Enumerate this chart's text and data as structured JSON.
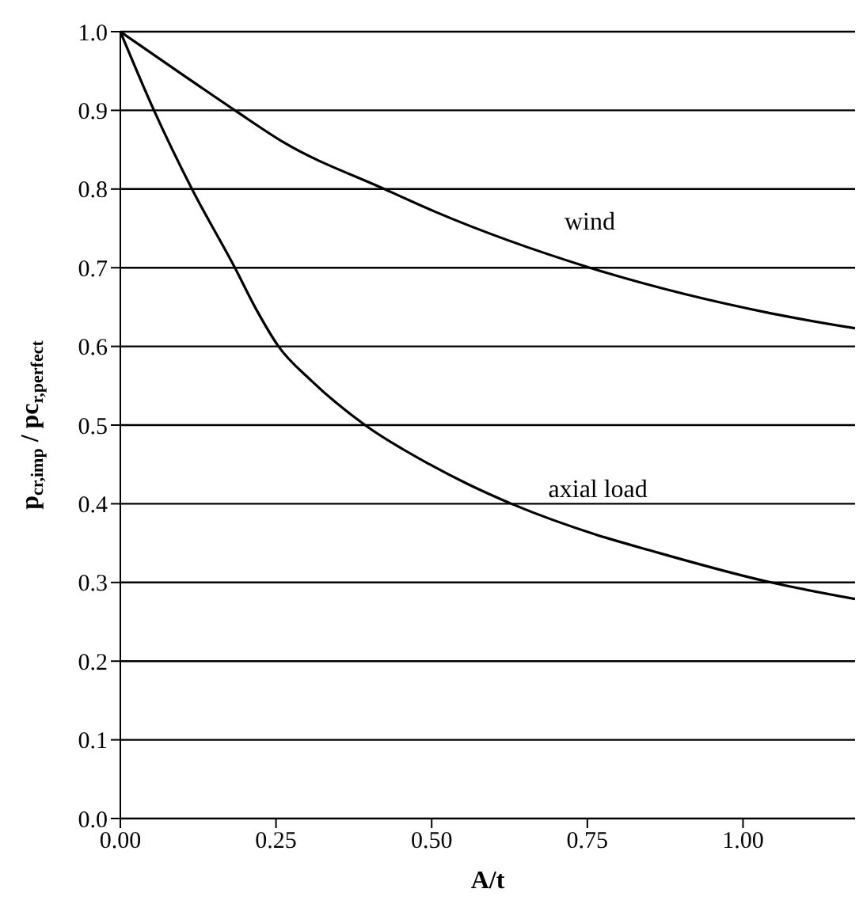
{
  "chart_data": {
    "type": "line",
    "xlabel": "A/t",
    "ylabel": "p$_{cr,imp}$ / pc$_{r,perfect}$",
    "xlim": [
      0,
      1.18
    ],
    "ylim": [
      0,
      1
    ],
    "xticks": [
      {
        "value": 0,
        "label": "0.00"
      },
      {
        "value": 0.25,
        "label": "0.25"
      },
      {
        "value": 0.5,
        "label": "0.50"
      },
      {
        "value": 0.75,
        "label": "0.75"
      },
      {
        "value": 1,
        "label": "1.00"
      }
    ],
    "yticks": [
      {
        "value": 0,
        "label": "0.0"
      },
      {
        "value": 0.1,
        "label": "0.1"
      },
      {
        "value": 0.2,
        "label": "0.2"
      },
      {
        "value": 0.3,
        "label": "0.3"
      },
      {
        "value": 0.4,
        "label": "0.4"
      },
      {
        "value": 0.5,
        "label": "0.5"
      },
      {
        "value": 0.6,
        "label": "0.6"
      },
      {
        "value": 0.7,
        "label": "0.7"
      },
      {
        "value": 0.8,
        "label": "0.8"
      },
      {
        "value": 0.9,
        "label": "0.9"
      },
      {
        "value": 1,
        "label": "1.0"
      }
    ],
    "grid": "y",
    "marker": "none",
    "line_style": "solid",
    "series": [
      {
        "name": "wind",
        "color": "#000000",
        "x": [
          0,
          0.106,
          0.184,
          0.263,
          0.424,
          0.506,
          0.754,
          1.045,
          1.18
        ],
        "values": [
          1,
          0.942,
          0.9,
          0.859,
          0.8,
          0.771,
          0.7,
          0.642,
          0.623
        ]
      },
      {
        "name": "axial load",
        "color": "#000000",
        "x": [
          0,
          0.054,
          0.115,
          0.184,
          0.219,
          0.254,
          0.306,
          0.393,
          0.497,
          0.558,
          0.628,
          0.767,
          0.854,
          1.045,
          1.18
        ],
        "values": [
          1,
          0.9,
          0.8,
          0.7,
          0.646,
          0.6,
          0.557,
          0.5,
          0.45,
          0.425,
          0.4,
          0.36,
          0.34,
          0.3,
          0.279
        ]
      }
    ]
  }
}
